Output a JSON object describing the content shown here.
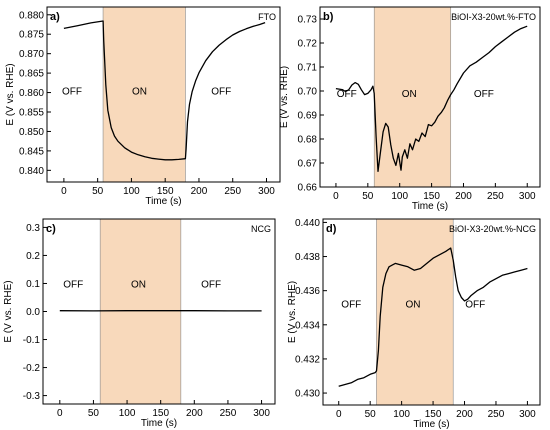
{
  "colors": {
    "on_region": "#f8d9bb",
    "line": "#000000",
    "axes": "#000000"
  },
  "chart_data": [
    {
      "type": "line",
      "panel": "a)",
      "name": "FTO",
      "xlabel": "Time (s)",
      "ylabel": "E (V vs. RHE)",
      "xlim": [
        -25,
        320
      ],
      "ylim": [
        0.837,
        0.882
      ],
      "xticks": [
        0,
        50,
        100,
        150,
        200,
        250,
        300
      ],
      "yticks": [
        0.84,
        0.845,
        0.85,
        0.855,
        0.86,
        0.865,
        0.87,
        0.875,
        0.88
      ],
      "ytick_labels": [
        "0.840",
        "0.845",
        "0.850",
        "0.855",
        "0.860",
        "0.865",
        "0.870",
        "0.875",
        "0.880"
      ],
      "on_region": [
        58,
        180
      ],
      "labels": [
        {
          "text": "OFF",
          "x": 12,
          "y": 0.8595
        },
        {
          "text": "ON",
          "x": 112,
          "y": 0.8595
        },
        {
          "text": "OFF",
          "x": 233,
          "y": 0.8595
        }
      ],
      "x": [
        0,
        20,
        40,
        58,
        59,
        62,
        65,
        70,
        75,
        80,
        90,
        100,
        110,
        120,
        130,
        140,
        150,
        160,
        170,
        180,
        181,
        183,
        186,
        190,
        195,
        200,
        210,
        220,
        230,
        240,
        250,
        260,
        270,
        280,
        290,
        298
      ],
      "y": [
        0.8765,
        0.8772,
        0.8779,
        0.8784,
        0.8735,
        0.862,
        0.8555,
        0.851,
        0.8488,
        0.8475,
        0.8458,
        0.8447,
        0.844,
        0.8435,
        0.8431,
        0.8429,
        0.8427,
        0.8427,
        0.8428,
        0.843,
        0.8455,
        0.8525,
        0.857,
        0.8603,
        0.863,
        0.8651,
        0.8682,
        0.8705,
        0.8722,
        0.8736,
        0.8748,
        0.8757,
        0.8764,
        0.877,
        0.8775,
        0.878
      ]
    },
    {
      "type": "line",
      "panel": "b)",
      "name": "BiOI-X3-20wt.%-FTO",
      "xlabel": "Time (s)",
      "ylabel": "E (V vs. RHE)",
      "xlim": [
        -25,
        320
      ],
      "ylim": [
        0.66,
        0.735
      ],
      "xticks": [
        0,
        50,
        100,
        150,
        200,
        250,
        300
      ],
      "yticks": [
        0.66,
        0.67,
        0.68,
        0.69,
        0.7,
        0.71,
        0.72,
        0.73
      ],
      "ytick_labels": [
        "0.66",
        "0.67",
        "0.68",
        "0.69",
        "0.70",
        "0.71",
        "0.72",
        "0.73"
      ],
      "on_region": [
        60,
        180
      ],
      "labels": [
        {
          "text": "OFF",
          "x": 17,
          "y": 0.6975
        },
        {
          "text": "ON",
          "x": 115,
          "y": 0.6975
        },
        {
          "text": "OFF",
          "x": 232,
          "y": 0.6975
        }
      ],
      "x": [
        0,
        5,
        10,
        15,
        20,
        25,
        30,
        35,
        40,
        45,
        50,
        55,
        58,
        60,
        63,
        66,
        70,
        74,
        78,
        82,
        86,
        90,
        94,
        98,
        102,
        104,
        108,
        112,
        116,
        120,
        125,
        130,
        135,
        140,
        145,
        150,
        155,
        160,
        165,
        170,
        175,
        180,
        185,
        190,
        200,
        210,
        220,
        230,
        240,
        250,
        260,
        270,
        280,
        290,
        300
      ],
      "y": [
        0.701,
        0.7008,
        0.7006,
        0.6998,
        0.7005,
        0.7025,
        0.7035,
        0.7028,
        0.7005,
        0.6985,
        0.699,
        0.7005,
        0.702,
        0.699,
        0.681,
        0.6665,
        0.675,
        0.683,
        0.6865,
        0.685,
        0.6775,
        0.672,
        0.669,
        0.674,
        0.667,
        0.6725,
        0.6755,
        0.672,
        0.678,
        0.6755,
        0.68,
        0.679,
        0.6825,
        0.681,
        0.686,
        0.6855,
        0.687,
        0.6895,
        0.691,
        0.693,
        0.696,
        0.6985,
        0.7005,
        0.703,
        0.7075,
        0.7105,
        0.712,
        0.714,
        0.716,
        0.7185,
        0.7205,
        0.7225,
        0.7245,
        0.726,
        0.727
      ]
    },
    {
      "type": "line",
      "panel": "c)",
      "name": "NCG",
      "xlabel": "Time (s)",
      "ylabel": "E (V vs. RHE)",
      "xlim": [
        -25,
        320
      ],
      "ylim": [
        -0.33,
        0.33
      ],
      "xticks": [
        0,
        50,
        100,
        150,
        200,
        250,
        300
      ],
      "yticks": [
        -0.3,
        -0.2,
        -0.1,
        0.0,
        0.1,
        0.2,
        0.3
      ],
      "ytick_labels": [
        "-0.3",
        "-0.2",
        "-0.1",
        "0.0",
        "0.1",
        "0.2",
        "0.3"
      ],
      "on_region": [
        60,
        180
      ],
      "labels": [
        {
          "text": "OFF",
          "x": 20,
          "y": 0.085
        },
        {
          "text": "ON",
          "x": 117,
          "y": 0.085
        },
        {
          "text": "OFF",
          "x": 225,
          "y": 0.085
        }
      ],
      "x": [
        0,
        50,
        100,
        150,
        200,
        250,
        300
      ],
      "y": [
        0.003,
        0.002,
        0.003,
        0.003,
        0.003,
        0.002,
        0.002
      ]
    },
    {
      "type": "line",
      "panel": "d)",
      "name": "BiOI-X3-20wt.%-NCG",
      "xlabel": "Time (s)",
      "ylabel": "E (V vs. RHE)",
      "xlim": [
        -25,
        320
      ],
      "ylim": [
        0.4293,
        0.4402
      ],
      "xticks": [
        0,
        50,
        100,
        150,
        200,
        250,
        300
      ],
      "yticks": [
        0.43,
        0.432,
        0.434,
        0.436,
        0.438,
        0.44
      ],
      "ytick_labels": [
        "0.430",
        "0.432",
        "0.434",
        "0.436",
        "0.438",
        "0.440"
      ],
      "on_region": [
        60,
        182
      ],
      "labels": [
        {
          "text": "OFF",
          "x": 20,
          "y": 0.435
        },
        {
          "text": "ON",
          "x": 118,
          "y": 0.435
        },
        {
          "text": "OFF",
          "x": 217,
          "y": 0.435
        }
      ],
      "x": [
        0,
        10,
        20,
        30,
        40,
        50,
        58,
        60,
        63,
        66,
        70,
        75,
        80,
        85,
        90,
        100,
        110,
        120,
        130,
        140,
        150,
        160,
        170,
        178,
        182,
        186,
        190,
        195,
        200,
        205,
        210,
        220,
        230,
        240,
        250,
        260,
        270,
        280,
        290,
        300
      ],
      "y": [
        0.4304,
        0.4305,
        0.4306,
        0.4308,
        0.4309,
        0.4311,
        0.4312,
        0.4313,
        0.4325,
        0.4345,
        0.4362,
        0.437,
        0.4374,
        0.4375,
        0.4376,
        0.4375,
        0.4374,
        0.4372,
        0.4373,
        0.4376,
        0.4379,
        0.4381,
        0.4383,
        0.4385,
        0.4378,
        0.4368,
        0.436,
        0.4356,
        0.4354,
        0.4355,
        0.4357,
        0.436,
        0.4362,
        0.4365,
        0.4367,
        0.4369,
        0.437,
        0.4371,
        0.4372,
        0.4373
      ]
    }
  ]
}
